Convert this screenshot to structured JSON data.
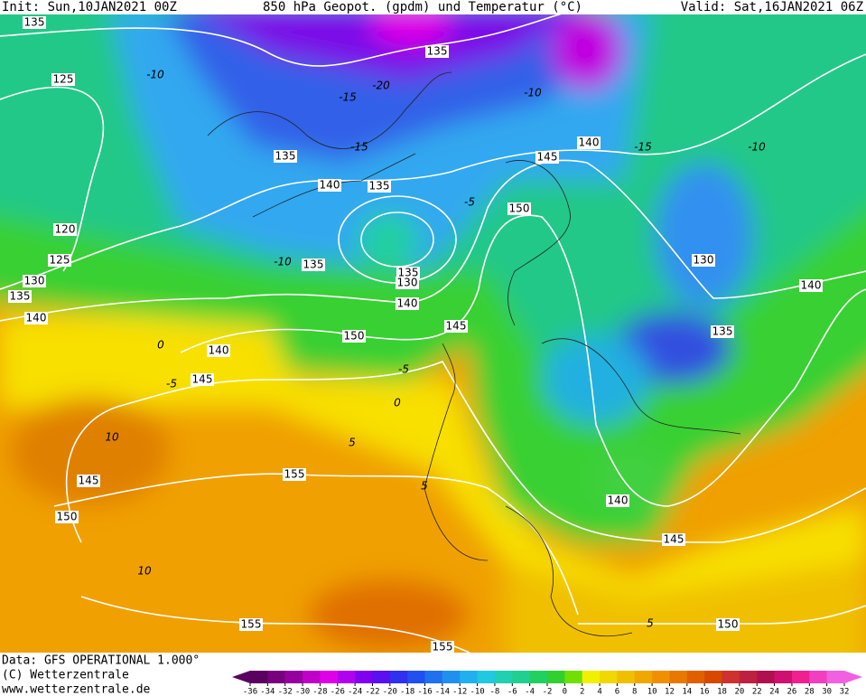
{
  "header": {
    "init": "Init: Sun,10JAN2021 00Z",
    "title": "850 hPa Geopot. (gpdm) und Temperatur (°C)",
    "valid": "Valid: Sat,16JAN2021 06Z"
  },
  "footer": {
    "data": "Data: GFS OPERATIONAL 1.000°",
    "copyright": "(C) Wetterzentrale",
    "url": "www.wetterzentrale.de"
  },
  "colorbar": {
    "ticks": [
      -36,
      -34,
      -32,
      -30,
      -28,
      -26,
      -24,
      -22,
      -20,
      -18,
      -16,
      -14,
      -12,
      -10,
      -8,
      -6,
      -4,
      -2,
      0,
      2,
      4,
      6,
      8,
      10,
      12,
      14,
      16,
      18,
      20,
      22,
      24,
      26,
      28,
      30,
      32
    ],
    "colors": [
      "#5a0060",
      "#78007e",
      "#9600a0",
      "#c000c8",
      "#e000e8",
      "#b000f0",
      "#8000f0",
      "#5a10f0",
      "#3030f0",
      "#2050f0",
      "#2070f0",
      "#2090f0",
      "#20b0f0",
      "#20c8e0",
      "#20d0b0",
      "#20d090",
      "#20d060",
      "#30d030",
      "#70e000",
      "#f0f000",
      "#f0d800",
      "#f0c000",
      "#f0a800",
      "#f09000",
      "#e87800",
      "#e06000",
      "#d84800",
      "#d03030",
      "#c02040",
      "#b01050",
      "#d01070",
      "#f02090",
      "#f040c0",
      "#f060e0"
    ]
  },
  "geopotential_labels": [
    135,
    125,
    135,
    140,
    135,
    145,
    140,
    135,
    150,
    120,
    125,
    130,
    135,
    140,
    135,
    135,
    130,
    140,
    145,
    130,
    140,
    135,
    150,
    140,
    145,
    155,
    145,
    140,
    150,
    145,
    155,
    150,
    155
  ],
  "temperature_labels": [
    -10,
    -20,
    -15,
    -10,
    -15,
    -15,
    -10,
    -5,
    -10,
    0,
    -5,
    -5,
    0,
    10,
    5,
    5,
    10,
    5
  ]
}
